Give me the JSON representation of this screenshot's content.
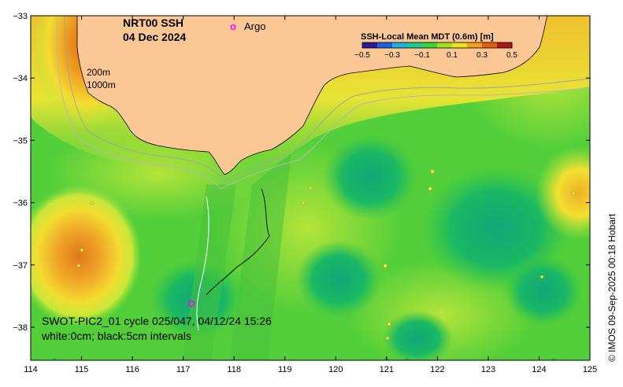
{
  "title": {
    "product": "NRT00 SSH",
    "date": "04 Dec 2024"
  },
  "legend": {
    "argo_symbol": "o",
    "argo_label": "Argo",
    "argo_color": "#ff00ff"
  },
  "depth_labels": {
    "shallow": "200m",
    "deep": "1000m"
  },
  "colorbar": {
    "title": "SSH-Local Mean MDT (0.6m) [m]",
    "ticks": [
      "−0.5",
      "−0.3",
      "−0.1",
      "0.1",
      "0.3",
      "0.5"
    ],
    "colors": [
      "#2a1aa0",
      "#1f5fe0",
      "#20b0e0",
      "#20c890",
      "#3cd43c",
      "#a0e020",
      "#f0e020",
      "#f5a020",
      "#e06010",
      "#b01818"
    ]
  },
  "axes": {
    "x_ticks": [
      "114",
      "115",
      "116",
      "117",
      "118",
      "119",
      "120",
      "121",
      "122",
      "123",
      "124",
      "125"
    ],
    "y_ticks": [
      "−33",
      "−34",
      "−35",
      "−36",
      "−37",
      "−38"
    ]
  },
  "info": {
    "line1": "SWOT-PIC2_01 cycle 025/047, 04/12/24 15:26",
    "line2": "white:0cm; black:5cm intervals"
  },
  "credit": "© IMOS 09-Sep-2025 00:18 Hobart",
  "colors": {
    "land": "#fbc895",
    "ocean_base": "#55d13a",
    "eddy_warm": "#f0a020",
    "eddy_core": "#d86a10",
    "eddy_cool": "#14b060"
  }
}
